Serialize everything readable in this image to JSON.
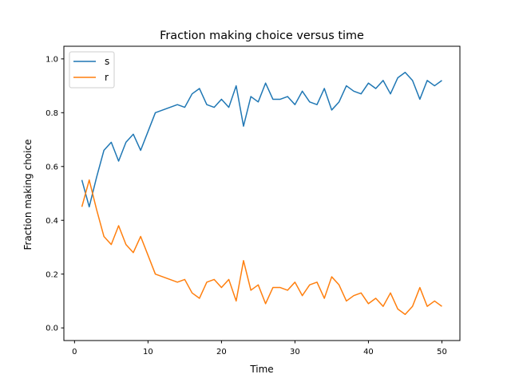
{
  "chart_data": {
    "type": "line",
    "title": "Fraction making choice versus time",
    "xlabel": "Time",
    "ylabel": "Fraction making choice",
    "xlim": [
      -1.45,
      52.45
    ],
    "ylim": [
      -0.047,
      1.047
    ],
    "xticks": [
      0,
      10,
      20,
      30,
      40,
      50
    ],
    "xtick_labels": [
      "0",
      "10",
      "20",
      "30",
      "40",
      "50"
    ],
    "yticks": [
      0.0,
      0.2,
      0.4,
      0.6,
      0.8,
      1.0
    ],
    "ytick_labels": [
      "0.0",
      "0.2",
      "0.4",
      "0.6",
      "0.8",
      "1.0"
    ],
    "grid": false,
    "legend_position": "upper-left",
    "x": [
      1,
      2,
      3,
      4,
      5,
      6,
      7,
      8,
      9,
      10,
      11,
      12,
      13,
      14,
      15,
      16,
      17,
      18,
      19,
      20,
      21,
      22,
      23,
      24,
      25,
      26,
      27,
      28,
      29,
      30,
      31,
      32,
      33,
      34,
      35,
      36,
      37,
      38,
      39,
      40,
      41,
      42,
      43,
      44,
      45,
      46,
      47,
      48,
      49,
      50
    ],
    "series": [
      {
        "name": "s",
        "color": "#1f77b4",
        "values": [
          0.55,
          0.45,
          0.56,
          0.66,
          0.69,
          0.62,
          0.69,
          0.72,
          0.66,
          0.73,
          0.8,
          0.81,
          0.82,
          0.83,
          0.82,
          0.87,
          0.89,
          0.83,
          0.82,
          0.85,
          0.82,
          0.9,
          0.75,
          0.86,
          0.84,
          0.91,
          0.85,
          0.85,
          0.86,
          0.83,
          0.88,
          0.84,
          0.83,
          0.89,
          0.81,
          0.84,
          0.9,
          0.88,
          0.87,
          0.91,
          0.89,
          0.92,
          0.87,
          0.93,
          0.95,
          0.92,
          0.85,
          0.92,
          0.9,
          0.92
        ]
      },
      {
        "name": "r",
        "color": "#ff7f0e",
        "values": [
          0.45,
          0.55,
          0.44,
          0.34,
          0.31,
          0.38,
          0.31,
          0.28,
          0.34,
          0.27,
          0.2,
          0.19,
          0.18,
          0.17,
          0.18,
          0.13,
          0.11,
          0.17,
          0.18,
          0.15,
          0.18,
          0.1,
          0.25,
          0.14,
          0.16,
          0.09,
          0.15,
          0.15,
          0.14,
          0.17,
          0.12,
          0.16,
          0.17,
          0.11,
          0.19,
          0.16,
          0.1,
          0.12,
          0.13,
          0.09,
          0.11,
          0.08,
          0.13,
          0.07,
          0.05,
          0.08,
          0.15,
          0.08,
          0.1,
          0.08
        ]
      }
    ]
  }
}
